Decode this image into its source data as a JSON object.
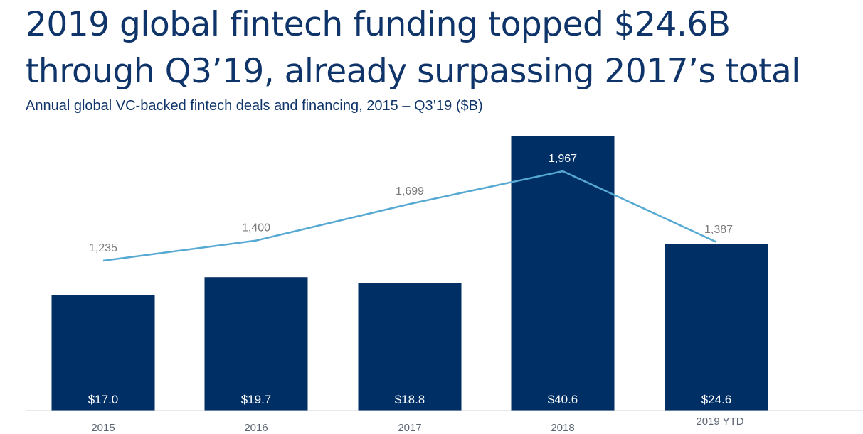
{
  "title": "2019 global fintech funding topped $24.6B through Q3’19, already surpassing 2017’s total",
  "subtitle": "Annual global VC-backed fintech deals and financing, 2015 – Q3’19 ($B)",
  "chart_data": {
    "type": "bar",
    "categories": [
      "2015",
      "2016",
      "2017",
      "2018",
      "2019 YTD"
    ],
    "series": [
      {
        "type": "bar",
        "values": [
          17.0,
          19.7,
          18.8,
          40.6,
          24.6
        ],
        "labels": [
          "$17.0",
          "$19.7",
          "$18.8",
          "$40.6",
          "$24.6"
        ],
        "color": "#002f66"
      },
      {
        "type": "line",
        "values": [
          1235,
          1400,
          1699,
          1967,
          1387
        ],
        "labels": [
          "1,235",
          "1,400",
          "1,699",
          "1,967",
          "1,387"
        ],
        "color": "#56a9d2"
      }
    ],
    "bar_label_color": "#ffffff",
    "line_label_colors": [
      "#7a7a7a",
      "#7a7a7a",
      "#7a7a7a",
      "#ffffff",
      "#7a7a7a"
    ],
    "grid": false,
    "legend": "none"
  }
}
